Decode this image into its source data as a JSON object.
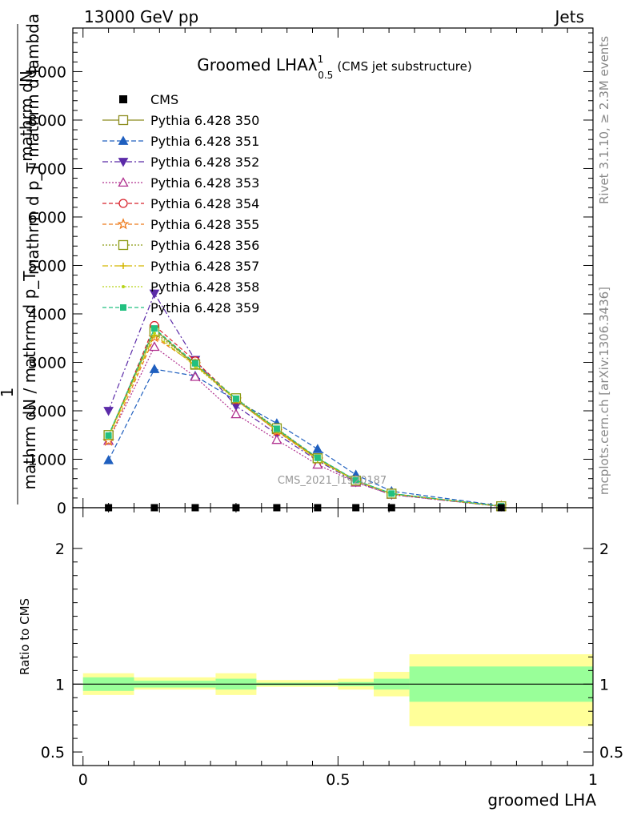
{
  "header": {
    "energy_label": "13000 GeV pp",
    "category_label": "Jets"
  },
  "side": {
    "rivet_label": "Rivet 3.1.10, ≥ 2.3M events",
    "mcplots_label": "mcplots.cern.ch [arXiv:1306.3436]"
  },
  "chart_data": {
    "type": "line",
    "title": "Groomed LHAλ",
    "title_sup": "1",
    "title_sub": "0.5",
    "title_suffix": "(CMS jet substructure)",
    "watermark": "CMS_2021_I1920187",
    "ylabel_lines": [
      "mathrm dN",
      "mathrm d p_T mathrm d lambda",
      "1",
      "mathrm dN / mathrm d p_T"
    ],
    "xlabel": "groomed LHA",
    "ratio_ylabel": "Ratio to CMS",
    "main_yticks": [
      {
        "value": 0,
        "label": "0"
      },
      {
        "value": 1000,
        "label": "1000"
      },
      {
        "value": 2000,
        "label": "2000"
      },
      {
        "value": 3000,
        "label": "3000"
      },
      {
        "value": 4000,
        "label": "4000"
      },
      {
        "value": 5000,
        "label": "5000"
      },
      {
        "value": 6000,
        "label": "6000"
      },
      {
        "value": 7000,
        "label": "7000"
      },
      {
        "value": 8000,
        "label": "8000"
      },
      {
        "value": 9000,
        "label": "9000"
      }
    ],
    "ylim": [
      0,
      9900
    ],
    "xlim": [
      -0.02,
      1.0
    ],
    "xticks": [
      {
        "value": 0,
        "label": "0"
      },
      {
        "value": 0.5,
        "label": "0.5"
      },
      {
        "value": 1,
        "label": "1"
      }
    ],
    "ratio_ylim": [
      0.4,
      2.3
    ],
    "ratio_yticks": [
      {
        "value": 0.5,
        "label": "0.5"
      },
      {
        "value": 1,
        "label": "1"
      },
      {
        "value": 2,
        "label": "2"
      }
    ],
    "bin_edges": [
      0,
      0.1,
      0.26,
      0.34,
      0.5,
      0.57,
      0.64,
      1.0
    ],
    "x": [
      0.05,
      0.14,
      0.22,
      0.3,
      0.38,
      0.46,
      0.535,
      0.605,
      0.82
    ],
    "cms": {
      "name": "CMS",
      "values": [
        0,
        0,
        0,
        0,
        0,
        0,
        0,
        0,
        0
      ]
    },
    "ratio_bands": {
      "inner": [
        {
          "x0": 0,
          "x1": 0.1,
          "lo": 0.95,
          "hi": 1.05
        },
        {
          "x0": 0.1,
          "x1": 0.26,
          "lo": 0.975,
          "hi": 1.025
        },
        {
          "x0": 0.26,
          "x1": 0.34,
          "lo": 0.96,
          "hi": 1.04
        },
        {
          "x0": 0.34,
          "x1": 0.5,
          "lo": 0.99,
          "hi": 1.01
        },
        {
          "x0": 0.5,
          "x1": 0.57,
          "lo": 0.985,
          "hi": 1.015
        },
        {
          "x0": 0.57,
          "x1": 0.64,
          "lo": 0.96,
          "hi": 1.04
        },
        {
          "x0": 0.64,
          "x1": 1.0,
          "lo": 0.87,
          "hi": 1.13
        }
      ],
      "outer": [
        {
          "x0": 0,
          "x1": 0.1,
          "lo": 0.92,
          "hi": 1.08
        },
        {
          "x0": 0.1,
          "x1": 0.26,
          "lo": 0.96,
          "hi": 1.05
        },
        {
          "x0": 0.26,
          "x1": 0.34,
          "lo": 0.92,
          "hi": 1.08
        },
        {
          "x0": 0.34,
          "x1": 0.5,
          "lo": 0.98,
          "hi": 1.03
        },
        {
          "x0": 0.5,
          "x1": 0.57,
          "lo": 0.96,
          "hi": 1.04
        },
        {
          "x0": 0.57,
          "x1": 0.64,
          "lo": 0.91,
          "hi": 1.09
        },
        {
          "x0": 0.64,
          "x1": 1.0,
          "lo": 0.69,
          "hi": 1.22
        }
      ]
    },
    "series": [
      {
        "name": "Pythia 6.428 350",
        "color": "#8c8c1e",
        "dash": "",
        "marker": "square-open",
        "values": [
          1480,
          3680,
          2950,
          2230,
          1620,
          1020,
          560,
          290,
          30
        ]
      },
      {
        "name": "Pythia 6.428 351",
        "color": "#1f5fbf",
        "dash": "6,3",
        "marker": "triangle-up-filled",
        "values": [
          980,
          2860,
          2720,
          2210,
          1740,
          1210,
          680,
          340,
          40
        ]
      },
      {
        "name": "Pythia 6.428 352",
        "color": "#5b2aa8",
        "dash": "7,3,2,3",
        "marker": "triangle-down-filled",
        "values": [
          2000,
          4420,
          3050,
          2100,
          1520,
          970,
          530,
          270,
          25
        ]
      },
      {
        "name": "Pythia 6.428 353",
        "color": "#b0308f",
        "dash": "2,2",
        "marker": "triangle-up-open",
        "values": [
          1380,
          3320,
          2700,
          1930,
          1400,
          890,
          520,
          270,
          25
        ]
      },
      {
        "name": "Pythia 6.428 354",
        "color": "#d8202a",
        "dash": "5,3",
        "marker": "circle-open",
        "values": [
          1450,
          3760,
          3030,
          2230,
          1590,
          1010,
          560,
          290,
          30
        ]
      },
      {
        "name": "Pythia 6.428 355",
        "color": "#ee7a1a",
        "dash": "5,3",
        "marker": "star-open",
        "values": [
          1380,
          3520,
          2960,
          2230,
          1580,
          990,
          550,
          285,
          28
        ]
      },
      {
        "name": "Pythia 6.428 356",
        "color": "#8a9a12",
        "dash": "2,2",
        "marker": "square-open",
        "values": [
          1500,
          3630,
          2960,
          2260,
          1640,
          1020,
          560,
          290,
          30
        ]
      },
      {
        "name": "Pythia 6.428 357",
        "color": "#d4b600",
        "dash": "7,3,2,3",
        "marker": "cross",
        "values": [
          1460,
          3560,
          2940,
          2240,
          1610,
          1000,
          555,
          288,
          28
        ]
      },
      {
        "name": "Pythia 6.428 358",
        "color": "#b6d41a",
        "dash": "2,2",
        "marker": "dot",
        "values": [
          1470,
          3600,
          2920,
          2220,
          1590,
          990,
          550,
          285,
          28
        ]
      },
      {
        "name": "Pythia 6.428 359",
        "color": "#22c080",
        "dash": "5,3",
        "marker": "square-filled",
        "values": [
          1490,
          3700,
          2980,
          2250,
          1630,
          1030,
          565,
          292,
          30
        ]
      }
    ]
  }
}
